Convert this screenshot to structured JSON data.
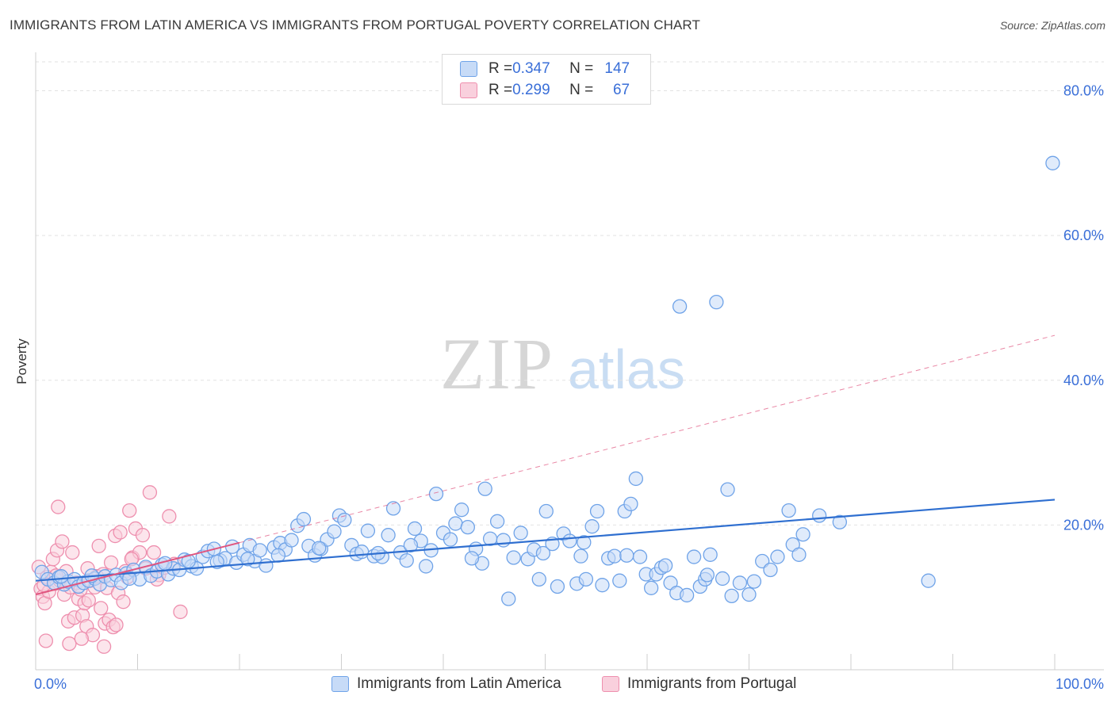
{
  "title": "IMMIGRANTS FROM LATIN AMERICA VS IMMIGRANTS FROM PORTUGAL POVERTY CORRELATION CHART",
  "source": "Source: ZipAtlas.com",
  "watermark": {
    "zip": "ZIP",
    "atlas": "atlas"
  },
  "colors": {
    "blue": "#6fa3e8",
    "blue_fill": "#c7dbf7",
    "blue_line": "#2f6fd0",
    "pink": "#ee8fae",
    "pink_fill": "#f9d0dd",
    "pink_line": "#e0557f",
    "axis_text": "#3a6fd8",
    "grid": "#e2e2e2"
  },
  "stats": [
    {
      "r_label": "R = ",
      "r_value": "0.347",
      "n_label": "N = ",
      "n_value": "147"
    },
    {
      "r_label": "R = ",
      "r_value": "0.299",
      "n_label": "N = ",
      "n_value": "67"
    }
  ],
  "chart_data": {
    "type": "scatter",
    "title": "IMMIGRANTS FROM LATIN AMERICA VS IMMIGRANTS FROM PORTUGAL POVERTY CORRELATION CHART",
    "xlabel": "",
    "ylabel": "Poverty",
    "xlim": [
      0,
      100
    ],
    "ylim": [
      0,
      84
    ],
    "x_tick_labels": [
      "0.0%",
      "100.0%"
    ],
    "y_ticks": [
      20,
      40,
      60,
      80
    ],
    "y_tick_labels": [
      "20.0%",
      "40.0%",
      "60.0%",
      "80.0%"
    ],
    "grid": true,
    "legend_position": "bottom",
    "series": [
      {
        "name": "Immigrants from Latin America",
        "color": "#6fa3e8",
        "trend": {
          "x": [
            0,
            100
          ],
          "y": [
            12.3,
            23.5
          ],
          "style": "solid"
        },
        "points": [
          [
            0.6,
            13.5
          ],
          [
            1.2,
            12.5
          ],
          [
            1.8,
            12.0
          ],
          [
            2.3,
            12.8
          ],
          [
            2.8,
            11.8
          ],
          [
            3.2,
            12.2
          ],
          [
            3.8,
            12.5
          ],
          [
            4.2,
            11.5
          ],
          [
            4.7,
            12.0
          ],
          [
            5.2,
            12.3
          ],
          [
            5.8,
            12.6
          ],
          [
            6.3,
            11.8
          ],
          [
            6.8,
            12.9
          ],
          [
            7.4,
            12.4
          ],
          [
            7.9,
            13.1
          ],
          [
            8.4,
            12.0
          ],
          [
            8.9,
            13.3
          ],
          [
            9.6,
            13.8
          ],
          [
            10.2,
            12.5
          ],
          [
            10.8,
            14.2
          ],
          [
            11.3,
            13.0
          ],
          [
            11.9,
            13.6
          ],
          [
            12.4,
            14.5
          ],
          [
            13.0,
            13.2
          ],
          [
            13.5,
            14.0
          ],
          [
            14.1,
            13.8
          ],
          [
            14.6,
            15.2
          ],
          [
            15.3,
            14.3
          ],
          [
            15.8,
            14.0
          ],
          [
            16.4,
            15.6
          ],
          [
            16.9,
            16.4
          ],
          [
            17.5,
            16.7
          ],
          [
            18.1,
            15.1
          ],
          [
            18.6,
            15.4
          ],
          [
            19.3,
            17.0
          ],
          [
            19.7,
            14.8
          ],
          [
            20.4,
            15.9
          ],
          [
            21.0,
            17.2
          ],
          [
            21.5,
            15.0
          ],
          [
            22.0,
            16.5
          ],
          [
            22.6,
            14.4
          ],
          [
            23.4,
            16.9
          ],
          [
            24.0,
            17.5
          ],
          [
            24.5,
            16.6
          ],
          [
            25.1,
            17.9
          ],
          [
            25.7,
            19.9
          ],
          [
            26.3,
            20.8
          ],
          [
            26.8,
            17.1
          ],
          [
            27.4,
            15.8
          ],
          [
            28.0,
            16.7
          ],
          [
            28.6,
            18.0
          ],
          [
            29.3,
            19.1
          ],
          [
            29.8,
            21.3
          ],
          [
            30.3,
            20.7
          ],
          [
            31.0,
            17.2
          ],
          [
            31.5,
            16.0
          ],
          [
            32.0,
            16.3
          ],
          [
            32.6,
            19.2
          ],
          [
            33.2,
            15.7
          ],
          [
            34.0,
            15.6
          ],
          [
            34.6,
            18.6
          ],
          [
            35.1,
            22.3
          ],
          [
            35.8,
            16.2
          ],
          [
            36.4,
            15.1
          ],
          [
            37.2,
            19.5
          ],
          [
            37.8,
            17.8
          ],
          [
            38.3,
            14.3
          ],
          [
            38.8,
            16.5
          ],
          [
            39.3,
            24.3
          ],
          [
            40.0,
            18.9
          ],
          [
            40.7,
            18.0
          ],
          [
            41.2,
            20.2
          ],
          [
            41.8,
            22.1
          ],
          [
            42.4,
            19.7
          ],
          [
            43.2,
            16.7
          ],
          [
            43.8,
            14.7
          ],
          [
            44.1,
            25.0
          ],
          [
            44.6,
            18.1
          ],
          [
            45.3,
            20.5
          ],
          [
            45.9,
            17.9
          ],
          [
            46.4,
            9.8
          ],
          [
            46.9,
            15.5
          ],
          [
            47.6,
            18.9
          ],
          [
            48.3,
            15.3
          ],
          [
            48.9,
            16.6
          ],
          [
            49.4,
            12.5
          ],
          [
            50.1,
            21.9
          ],
          [
            50.7,
            17.4
          ],
          [
            51.2,
            11.5
          ],
          [
            51.8,
            18.8
          ],
          [
            52.4,
            17.8
          ],
          [
            53.1,
            11.9
          ],
          [
            53.5,
            15.7
          ],
          [
            54.0,
            12.5
          ],
          [
            54.6,
            19.8
          ],
          [
            55.1,
            21.9
          ],
          [
            55.6,
            11.7
          ],
          [
            56.2,
            15.4
          ],
          [
            56.8,
            15.7
          ],
          [
            57.3,
            12.3
          ],
          [
            57.8,
            21.9
          ],
          [
            58.4,
            22.9
          ],
          [
            58.9,
            26.4
          ],
          [
            59.3,
            15.6
          ],
          [
            59.9,
            13.2
          ],
          [
            60.4,
            11.3
          ],
          [
            60.9,
            13.2
          ],
          [
            61.4,
            14.1
          ],
          [
            62.3,
            12.0
          ],
          [
            62.9,
            10.6
          ],
          [
            63.2,
            50.2
          ],
          [
            63.9,
            10.3
          ],
          [
            64.6,
            15.6
          ],
          [
            65.2,
            11.5
          ],
          [
            65.7,
            12.5
          ],
          [
            66.2,
            15.9
          ],
          [
            66.8,
            50.8
          ],
          [
            67.4,
            12.6
          ],
          [
            67.9,
            24.9
          ],
          [
            68.3,
            10.2
          ],
          [
            69.1,
            12.0
          ],
          [
            70.0,
            10.4
          ],
          [
            70.5,
            12.2
          ],
          [
            71.3,
            15.0
          ],
          [
            72.8,
            15.6
          ],
          [
            73.9,
            22.0
          ],
          [
            74.3,
            17.3
          ],
          [
            74.9,
            15.9
          ],
          [
            75.3,
            18.7
          ],
          [
            76.9,
            21.3
          ],
          [
            78.9,
            20.4
          ],
          [
            87.6,
            12.3
          ],
          [
            99.8,
            70.0
          ],
          [
            2.5,
            12.9
          ],
          [
            5.5,
            13.0
          ],
          [
            9.2,
            12.6
          ],
          [
            12.7,
            14.7
          ],
          [
            15.0,
            15.0
          ],
          [
            17.8,
            14.9
          ],
          [
            20.8,
            15.3
          ],
          [
            23.8,
            15.8
          ],
          [
            27.8,
            16.8
          ],
          [
            33.6,
            16.1
          ],
          [
            36.8,
            17.2
          ],
          [
            42.8,
            15.4
          ],
          [
            49.8,
            16.1
          ],
          [
            53.8,
            17.6
          ],
          [
            58.0,
            15.8
          ],
          [
            61.8,
            14.4
          ],
          [
            65.9,
            13.1
          ],
          [
            72.1,
            13.8
          ]
        ]
      },
      {
        "name": "Immigrants from Portugal",
        "color": "#ee8fae",
        "trend": {
          "x": [
            0,
            100
          ],
          "y": [
            10.4,
            46.2
          ],
          "solid_until": 20,
          "style": "dashed"
        },
        "points": [
          [
            0.3,
            14.2
          ],
          [
            0.5,
            11.2
          ],
          [
            0.7,
            10.1
          ],
          [
            0.9,
            9.2
          ],
          [
            1.1,
            12.8
          ],
          [
            1.3,
            10.8
          ],
          [
            1.5,
            13.5
          ],
          [
            1.7,
            15.3
          ],
          [
            1.9,
            11.9
          ],
          [
            2.1,
            16.5
          ],
          [
            2.2,
            22.5
          ],
          [
            2.4,
            12.3
          ],
          [
            2.6,
            17.7
          ],
          [
            2.8,
            10.4
          ],
          [
            3.0,
            13.6
          ],
          [
            3.2,
            6.7
          ],
          [
            3.4,
            11.4
          ],
          [
            3.6,
            16.2
          ],
          [
            3.8,
            7.2
          ],
          [
            4.0,
            12.0
          ],
          [
            4.2,
            9.8
          ],
          [
            4.4,
            11.1
          ],
          [
            4.6,
            7.5
          ],
          [
            4.8,
            9.2
          ],
          [
            5.0,
            6.0
          ],
          [
            5.2,
            9.6
          ],
          [
            5.4,
            12.3
          ],
          [
            5.6,
            4.8
          ],
          [
            5.8,
            11.4
          ],
          [
            6.0,
            12.9
          ],
          [
            6.2,
            17.1
          ],
          [
            6.4,
            8.5
          ],
          [
            6.6,
            13.2
          ],
          [
            6.8,
            6.4
          ],
          [
            7.0,
            11.3
          ],
          [
            7.2,
            6.9
          ],
          [
            7.4,
            14.8
          ],
          [
            7.6,
            5.9
          ],
          [
            7.8,
            18.5
          ],
          [
            8.1,
            10.6
          ],
          [
            8.3,
            19.0
          ],
          [
            8.6,
            9.4
          ],
          [
            8.8,
            13.6
          ],
          [
            9.0,
            12.8
          ],
          [
            9.2,
            22.0
          ],
          [
            9.5,
            15.5
          ],
          [
            9.8,
            19.5
          ],
          [
            10.2,
            16.2
          ],
          [
            10.5,
            18.6
          ],
          [
            10.8,
            14.0
          ],
          [
            11.2,
            24.5
          ],
          [
            11.6,
            16.2
          ],
          [
            12.1,
            13.1
          ],
          [
            12.6,
            14.1
          ],
          [
            13.1,
            21.2
          ],
          [
            13.6,
            14.6
          ],
          [
            14.2,
            8.0
          ],
          [
            1.0,
            4.0
          ],
          [
            3.3,
            3.6
          ],
          [
            4.5,
            4.3
          ],
          [
            6.7,
            3.2
          ],
          [
            7.9,
            6.2
          ],
          [
            2.0,
            13.0
          ],
          [
            0.8,
            11.7
          ],
          [
            5.1,
            14.0
          ],
          [
            9.4,
            15.3
          ],
          [
            11.9,
            12.5
          ]
        ]
      }
    ]
  }
}
